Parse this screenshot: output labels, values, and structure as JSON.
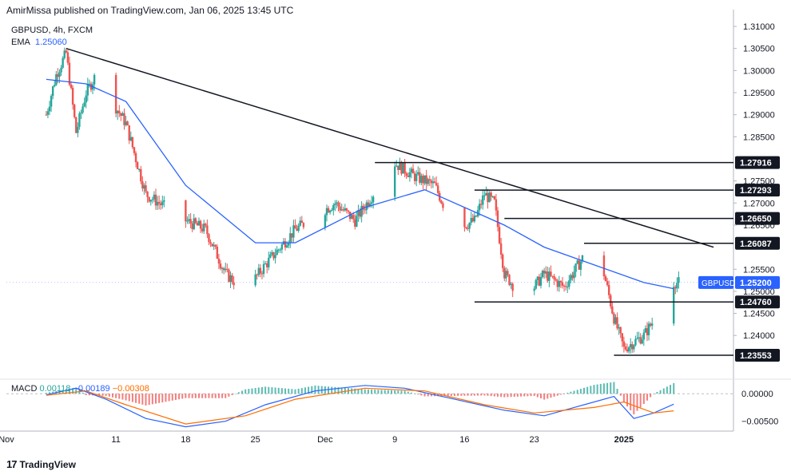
{
  "header": {
    "published": "AmirMissa published on TradingView.com, Jan 06, 2025 13:45 UTC"
  },
  "legend": {
    "symbol": "GBPUSD, 4h, FXCM",
    "ema_label": "EMA",
    "ema_value": "1.25060"
  },
  "macd_legend": {
    "label": "MACD",
    "hist": "0.00118",
    "macd": "−0.00189",
    "signal": "−0.00308"
  },
  "footer": {
    "brand": "TradingView",
    "logo": "tradingview-logo-icon"
  },
  "colors": {
    "up": "#26a69a",
    "down": "#ef5350",
    "ema": "#2962ff",
    "signal": "#ff6d00",
    "symbol_tag": "#2962ff",
    "line": "#131722"
  },
  "chart_data": {
    "type": "candlestick",
    "title": "GBPUSD, 4h, FXCM",
    "y_axis": {
      "range": [
        1.231,
        1.312
      ],
      "ticks": [
        "1.31000",
        "1.30500",
        "1.30000",
        "1.29500",
        "1.29000",
        "1.28500",
        "1.27500",
        "1.27000",
        "1.26500",
        "1.25500",
        "1.25000",
        "1.24500",
        "1.24000"
      ]
    },
    "x_axis": {
      "ticks": [
        "Nov",
        "11",
        "18",
        "25",
        "Dec",
        "9",
        "16",
        "23",
        "2025"
      ]
    },
    "price_path": [
      [
        "2024-11-04",
        1.29
      ],
      [
        "2024-11-05",
        1.299
      ],
      [
        "2024-11-06",
        1.304
      ],
      [
        "2024-11-07",
        1.286
      ],
      [
        "2024-11-08",
        1.295
      ],
      [
        "2024-11-09",
        1.299
      ],
      [
        "2024-11-12",
        1.288
      ],
      [
        "2024-11-14",
        1.272
      ],
      [
        "2024-11-18",
        1.266
      ],
      [
        "2024-11-20",
        1.264
      ],
      [
        "2024-11-22",
        1.254
      ],
      [
        "2024-11-24",
        1.25
      ],
      [
        "2024-11-26",
        1.256
      ],
      [
        "2024-11-29",
        1.264
      ],
      [
        "2024-12-03",
        1.27
      ],
      [
        "2024-12-05",
        1.266
      ],
      [
        "2024-12-08",
        1.276
      ],
      [
        "2024-12-09",
        1.279
      ],
      [
        "2024-12-11",
        1.276
      ],
      [
        "2024-12-13",
        1.274
      ],
      [
        "2024-12-15",
        1.264
      ],
      [
        "2024-12-17",
        1.266
      ],
      [
        "2024-12-18",
        1.272
      ],
      [
        "2024-12-19",
        1.27
      ],
      [
        "2024-12-20",
        1.254
      ],
      [
        "2024-12-22",
        1.248
      ],
      [
        "2024-12-24",
        1.254
      ],
      [
        "2024-12-26",
        1.251
      ],
      [
        "2024-12-28",
        1.258
      ],
      [
        "2024-12-30",
        1.254
      ],
      [
        "2024-12-31",
        1.244
      ],
      [
        "2025-01-01",
        1.237
      ],
      [
        "2025-01-03",
        1.24
      ],
      [
        "2025-01-05",
        1.247
      ],
      [
        "2025-01-06",
        1.252
      ]
    ],
    "ema_path": [
      [
        "2024-11-04",
        1.298
      ],
      [
        "2024-11-08",
        1.297
      ],
      [
        "2024-11-12",
        1.293
      ],
      [
        "2024-11-18",
        1.274
      ],
      [
        "2024-11-25",
        1.261
      ],
      [
        "2024-11-29",
        1.261
      ],
      [
        "2024-12-06",
        1.269
      ],
      [
        "2024-12-12",
        1.273
      ],
      [
        "2024-12-17",
        1.268
      ],
      [
        "2024-12-20",
        1.265
      ],
      [
        "2024-12-24",
        1.26
      ],
      [
        "2024-12-29",
        1.256
      ],
      [
        "2025-01-03",
        1.252
      ],
      [
        "2025-01-06",
        1.2506
      ]
    ],
    "trendline": {
      "from": [
        "2024-11-06",
        1.305
      ],
      "to": [
        "2025-01-10",
        1.26
      ]
    },
    "levels": [
      {
        "price": 1.27916,
        "label": "1.27916",
        "from": "2024-12-07"
      },
      {
        "price": 1.27293,
        "label": "1.27293",
        "from": "2024-12-17"
      },
      {
        "price": 1.2665,
        "label": "1.26650",
        "from": "2024-12-20"
      },
      {
        "price": 1.26087,
        "label": "1.26087",
        "from": "2024-12-28"
      },
      {
        "price": 1.2476,
        "label": "1.24760",
        "from": "2024-12-17"
      },
      {
        "price": 1.23553,
        "label": "1.23553",
        "from": "2024-12-31"
      }
    ],
    "current": {
      "symbol": "GBPUSD",
      "price": 1.252,
      "label": "1.25200"
    },
    "macd": {
      "y_ticks": [
        "0.00000",
        "−0.00500"
      ],
      "y_range": [
        -0.0065,
        0.0022
      ],
      "macd_path": [
        [
          "2024-11-04",
          -0.0002
        ],
        [
          "2024-11-07",
          0.001
        ],
        [
          "2024-11-10",
          -0.001
        ],
        [
          "2024-11-14",
          -0.0045
        ],
        [
          "2024-11-18",
          -0.006
        ],
        [
          "2024-11-22",
          -0.005
        ],
        [
          "2024-11-26",
          -0.002
        ],
        [
          "2024-12-01",
          0.0005
        ],
        [
          "2024-12-06",
          0.0015
        ],
        [
          "2024-12-10",
          0.001
        ],
        [
          "2024-12-15",
          -0.001
        ],
        [
          "2024-12-20",
          -0.003
        ],
        [
          "2024-12-24",
          -0.004
        ],
        [
          "2024-12-28",
          -0.002
        ],
        [
          "2024-12-31",
          -0.0005
        ],
        [
          "2025-01-02",
          -0.0045
        ],
        [
          "2025-01-04",
          -0.0035
        ],
        [
          "2025-01-06",
          -0.0019
        ]
      ],
      "signal_path": [
        [
          "2024-11-04",
          -0.0003
        ],
        [
          "2024-11-08",
          0.0005
        ],
        [
          "2024-11-12",
          -0.002
        ],
        [
          "2024-11-18",
          -0.0055
        ],
        [
          "2024-11-24",
          -0.004
        ],
        [
          "2024-11-29",
          -0.001
        ],
        [
          "2024-12-06",
          0.001
        ],
        [
          "2024-12-12",
          0.0005
        ],
        [
          "2024-12-18",
          -0.002
        ],
        [
          "2024-12-23",
          -0.0035
        ],
        [
          "2024-12-29",
          -0.0025
        ],
        [
          "2025-01-01",
          -0.0015
        ],
        [
          "2025-01-04",
          -0.0035
        ],
        [
          "2025-01-06",
          -0.0031
        ]
      ]
    }
  }
}
